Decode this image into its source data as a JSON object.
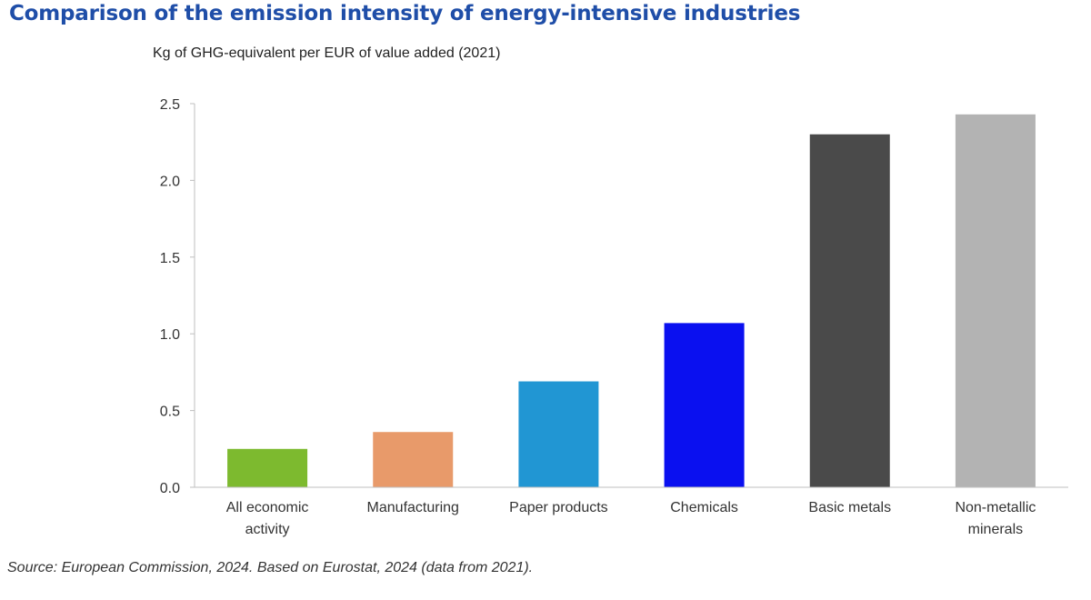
{
  "title": "Comparison of the emission intensity of energy-intensive industries",
  "source": "Source: European Commission, 2024. Based on Eurostat, 2024 (data from 2021).",
  "chart_data": {
    "type": "bar",
    "title": "Comparison of the emission intensity of energy-intensive industries",
    "subtitle": "Kg of GHG-equivalent per EUR of value added (2021)",
    "xlabel": "",
    "ylabel": "",
    "categories": [
      [
        "All economic",
        "activity"
      ],
      [
        "Manufacturing"
      ],
      [
        "Paper products"
      ],
      [
        "Chemicals"
      ],
      [
        "Basic metals"
      ],
      [
        "Non-metallic",
        "minerals"
      ]
    ],
    "values": [
      0.25,
      0.36,
      0.69,
      1.07,
      2.3,
      2.43
    ],
    "colors": [
      "#7dba2f",
      "#e89a6a",
      "#2196d3",
      "#0a10f0",
      "#4a4a4a",
      "#b3b3b3"
    ],
    "ylim": [
      0,
      2.5
    ],
    "yticks": [
      "0.0",
      "0.5",
      "1.0",
      "1.5",
      "2.0",
      "2.5"
    ],
    "grid": false,
    "legend": "none"
  }
}
